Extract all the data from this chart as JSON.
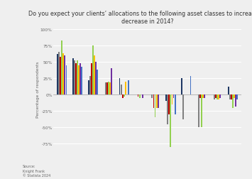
{
  "title": "Do you expect your clients’ allocations to the following asset classes to increase or\ndecrease in 2014?",
  "ylabel": "Percentage of respondents",
  "yticks": [
    -75,
    -50,
    -25,
    0,
    25,
    50,
    75,
    100
  ],
  "ytick_labels": [
    "-75%",
    "-50%",
    "-25%",
    "0%",
    "25%",
    "50%",
    "75%",
    "100%"
  ],
  "ylim": [
    -88,
    105
  ],
  "source": "Source:\nKnight Frank\n© Statista 2024",
  "colors": [
    "#1f3864",
    "#808080",
    "#c00000",
    "#92d050",
    "#ffc000",
    "#7030a0",
    "#4472c4"
  ],
  "groups": [
    [
      62,
      65,
      58,
      83,
      63,
      60,
      45
    ],
    [
      55,
      52,
      48,
      52,
      45,
      48,
      42
    ],
    [
      22,
      28,
      48,
      75,
      60,
      50,
      38
    ],
    [
      0,
      18,
      18,
      20,
      18,
      40,
      0
    ],
    [
      25,
      15,
      -5,
      -3,
      20,
      0,
      22
    ],
    [
      0,
      0,
      -3,
      -5,
      0,
      -5,
      0
    ],
    [
      0,
      -5,
      -20,
      -35,
      -20,
      -20,
      0
    ],
    [
      -10,
      -45,
      -30,
      -80,
      -15,
      -5,
      -30
    ],
    [
      25,
      -38,
      0,
      0,
      0,
      0,
      28
    ],
    [
      0,
      -50,
      -5,
      -50,
      -5,
      -5,
      0
    ],
    [
      0,
      -8,
      -5,
      -8,
      -8,
      -5,
      0
    ],
    [
      12,
      -8,
      -8,
      -20,
      -5,
      -18,
      -8
    ]
  ],
  "background_color": "#efefef",
  "bar_width": 0.095,
  "title_fontsize": 5.8,
  "label_fontsize": 4.2,
  "source_fontsize": 3.5
}
